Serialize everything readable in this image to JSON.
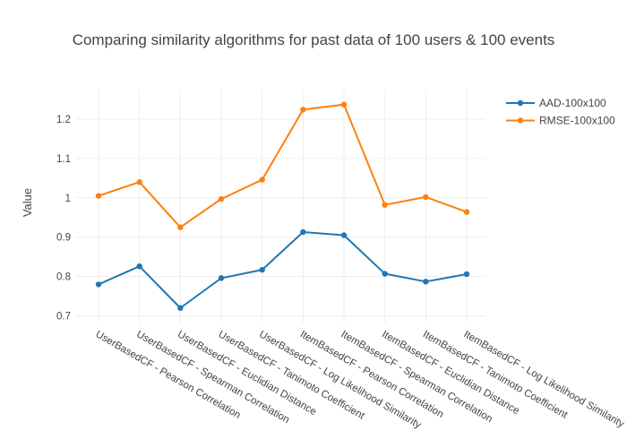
{
  "style": {
    "background": "#ffffff",
    "text_color": "#444444",
    "grid_color": "#eeeeee"
  },
  "chart_data": {
    "type": "line",
    "title": "Comparing similarity algorithms for past data of 100 users & 100 events",
    "xlabel": "",
    "ylabel": "Value",
    "categories": [
      "UserBasedCF - Pearson Correlation",
      "UserBasedCF - Spearman Correlation",
      "UserBasedCF - Euclidian Distance",
      "UserBasedCF - Tanimoto Coefficient",
      "UserBasedCF - Log Likelihood Similarity",
      "ItemBasedCF - Pearson Correlation",
      "ItemBasedCF - Spearman Correlation",
      "ItemBasedCF - Euclidian Distance",
      "ItemBasedCF - Tanimoto Coefficient",
      "ItemBasedCF - Log Likelihood Similarity"
    ],
    "series": [
      {
        "name": "AAD-100x100",
        "color": "#1f77b4",
        "values": [
          0.78,
          0.826,
          0.72,
          0.796,
          0.817,
          0.913,
          0.905,
          0.807,
          0.787,
          0.806
        ]
      },
      {
        "name": "RMSE-100x100",
        "color": "#ff7f0e",
        "values": [
          1.005,
          1.04,
          0.925,
          0.997,
          1.046,
          1.224,
          1.237,
          0.982,
          1.002,
          0.964
        ]
      }
    ],
    "yticks": [
      "0.7",
      "0.8",
      "0.9",
      "1",
      "1.1",
      "1.2"
    ],
    "ylim": [
      0.683,
      1.275
    ],
    "grid": true,
    "legend_position": "top-right",
    "tick_angle": 30
  }
}
